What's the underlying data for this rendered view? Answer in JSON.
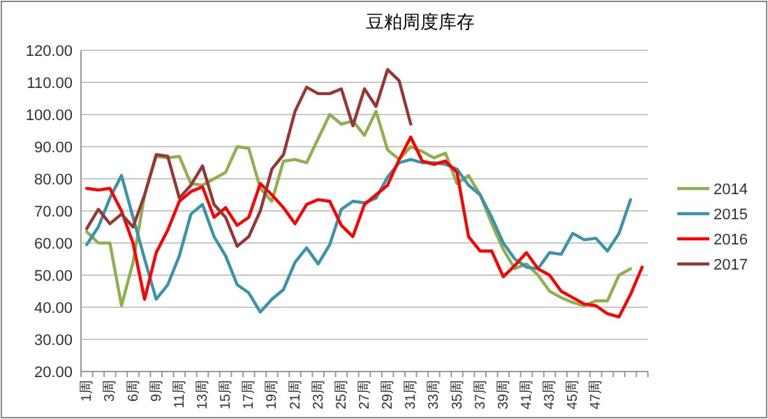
{
  "chart_data": {
    "type": "line",
    "title": "豆粕周度库存",
    "categories": [
      "1周",
      null,
      "3周",
      null,
      "6周",
      null,
      "9周",
      null,
      "11周",
      null,
      "13周",
      null,
      "15周",
      null,
      "17周",
      null,
      "19周",
      null,
      "21周",
      null,
      "23周",
      null,
      "25周",
      null,
      "27周",
      null,
      "29周",
      null,
      "31周",
      null,
      "33周",
      null,
      "35周",
      null,
      "37周",
      null,
      "39周",
      null,
      "41周",
      null,
      "43周",
      null,
      "45周",
      null,
      "47周",
      null,
      null,
      null,
      null
    ],
    "series": [
      {
        "name": "2014",
        "color": "#8fb050",
        "values": [
          63.5,
          60,
          60,
          40.5,
          54,
          75,
          87,
          86.5,
          87,
          78.5,
          78,
          80,
          82,
          90,
          89.5,
          77,
          73,
          85.5,
          86,
          85,
          92.5,
          100,
          97,
          98,
          93.5,
          101,
          89,
          86,
          90,
          88.5,
          86.5,
          88,
          78.5,
          81,
          75,
          66,
          58,
          52,
          53.5,
          50,
          45,
          43,
          41.5,
          40.5,
          42,
          42,
          50,
          52,
          null
        ]
      },
      {
        "name": "2015",
        "color": "#3a94a8",
        "values": [
          59.5,
          65,
          74,
          81,
          68,
          55,
          42.5,
          47,
          56,
          69,
          72,
          62,
          56,
          47,
          44.5,
          38.5,
          42.5,
          45.5,
          54,
          58.5,
          53.5,
          59.5,
          70.5,
          73,
          72.5,
          74,
          80.5,
          85,
          86,
          85,
          85,
          84.5,
          83,
          78,
          75,
          68,
          60,
          55,
          52.5,
          52,
          57,
          56.5,
          63,
          61,
          61.5,
          57.5,
          63,
          73.5,
          null
        ]
      },
      {
        "name": "2016",
        "color": "#ff0000",
        "values": [
          77,
          76.5,
          77,
          70,
          60,
          42.5,
          57,
          64,
          73,
          76,
          77.5,
          68,
          71,
          65.5,
          68,
          78.5,
          75,
          71,
          66,
          72,
          73.5,
          73,
          65.5,
          62,
          72,
          75,
          78,
          86,
          93,
          85.5,
          84.5,
          85.5,
          82,
          62,
          57.5,
          57.5,
          49.5,
          53,
          57,
          52,
          50,
          45,
          43,
          41,
          40.5,
          38,
          37,
          44,
          52.5
        ]
      },
      {
        "name": "2017",
        "color": "#953735",
        "values": [
          64.5,
          70.5,
          66,
          69,
          65,
          75,
          87.5,
          87,
          74,
          78,
          84,
          72,
          68,
          59,
          62,
          70,
          83,
          87.5,
          101,
          108.5,
          106.5,
          106.5,
          108,
          96.5,
          108,
          102.5,
          114,
          110.5,
          97,
          null,
          null,
          null,
          null,
          null,
          null,
          null,
          null,
          null,
          null,
          null,
          null,
          null,
          null,
          null,
          null,
          null,
          null,
          null,
          null
        ]
      }
    ],
    "ylim": [
      20,
      120
    ],
    "yticks": [
      {
        "value": 20,
        "label": "20.00"
      },
      {
        "value": 30,
        "label": "30.00"
      },
      {
        "value": 40,
        "label": "40.00"
      },
      {
        "value": 50,
        "label": "50.00"
      },
      {
        "value": 60,
        "label": "60.00"
      },
      {
        "value": 70,
        "label": "70.00"
      },
      {
        "value": 80,
        "label": "80.00"
      },
      {
        "value": 90,
        "label": "90.00"
      },
      {
        "value": 100,
        "label": "100.00"
      },
      {
        "value": 110,
        "label": "110.00"
      },
      {
        "value": 120,
        "label": "120.00"
      }
    ],
    "grid": "y",
    "legend": "right",
    "line_style": "solid"
  }
}
